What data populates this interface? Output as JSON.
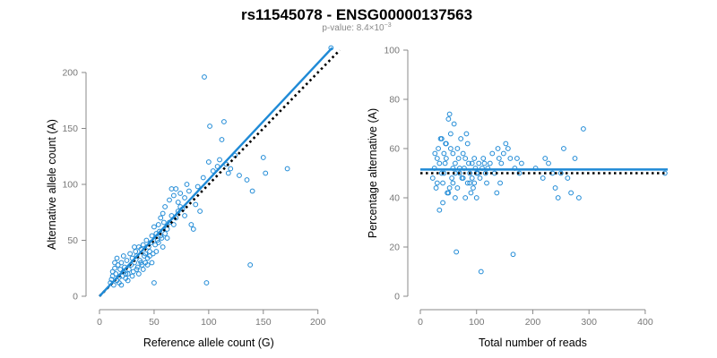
{
  "header": {
    "title": "rs11545078 - ENSG00000137563",
    "subtitle_prefix": "p-value: 8.4×10",
    "subtitle_exponent": "−3"
  },
  "colors": {
    "point": "#1f8ad6",
    "fit_line": "#1f8ad6",
    "reference_line": "#000000",
    "tick_text": "#777777"
  },
  "chart_data": [
    {
      "type": "scatter",
      "title": "",
      "xlabel": "Reference allele count (G)",
      "ylabel": "Alternative allele count (A)",
      "xlim": [
        0,
        215
      ],
      "ylim": [
        0,
        220
      ],
      "xticks": [
        0,
        50,
        100,
        150,
        200
      ],
      "yticks": [
        0,
        50,
        100,
        150,
        200
      ],
      "grid": false,
      "fit_line": {
        "x": [
          0,
          213
        ],
        "y": [
          0,
          222
        ]
      },
      "reference_line": {
        "x": [
          0,
          220
        ],
        "y": [
          0,
          220
        ],
        "style": "dotted"
      },
      "points": [
        [
          10,
          12
        ],
        [
          11,
          15
        ],
        [
          12,
          18
        ],
        [
          13,
          10
        ],
        [
          12,
          22
        ],
        [
          14,
          25
        ],
        [
          15,
          20
        ],
        [
          16,
          14
        ],
        [
          17,
          28
        ],
        [
          18,
          17
        ],
        [
          19,
          24
        ],
        [
          20,
          30
        ],
        [
          21,
          18
        ],
        [
          22,
          22
        ],
        [
          23,
          26
        ],
        [
          24,
          16
        ],
        [
          25,
          32
        ],
        [
          26,
          20
        ],
        [
          27,
          24
        ],
        [
          28,
          38
        ],
        [
          29,
          28
        ],
        [
          30,
          34
        ],
        [
          31,
          22
        ],
        [
          32,
          30
        ],
        [
          33,
          40
        ],
        [
          34,
          36
        ],
        [
          35,
          26
        ],
        [
          36,
          44
        ],
        [
          37,
          32
        ],
        [
          38,
          42
        ],
        [
          39,
          28
        ],
        [
          40,
          46
        ],
        [
          41,
          36
        ],
        [
          42,
          38
        ],
        [
          43,
          50
        ],
        [
          44,
          34
        ],
        [
          45,
          44
        ],
        [
          46,
          40
        ],
        [
          47,
          48
        ],
        [
          48,
          54
        ],
        [
          49,
          38
        ],
        [
          50,
          62
        ],
        [
          51,
          46
        ],
        [
          52,
          56
        ],
        [
          53,
          50
        ],
        [
          54,
          64
        ],
        [
          55,
          58
        ],
        [
          56,
          70
        ],
        [
          57,
          52
        ],
        [
          58,
          74
        ],
        [
          59,
          66
        ],
        [
          60,
          80
        ],
        [
          62,
          60
        ],
        [
          64,
          86
        ],
        [
          66,
          72
        ],
        [
          68,
          90
        ],
        [
          70,
          96
        ],
        [
          72,
          84
        ],
        [
          74,
          92
        ],
        [
          76,
          78
        ],
        [
          78,
          88
        ],
        [
          80,
          100
        ],
        [
          82,
          94
        ],
        [
          84,
          64
        ],
        [
          86,
          60
        ],
        [
          88,
          82
        ],
        [
          90,
          98
        ],
        [
          92,
          76
        ],
        [
          95,
          106
        ],
        [
          96,
          196
        ],
        [
          98,
          12
        ],
        [
          100,
          120
        ],
        [
          101,
          152
        ],
        [
          104,
          112
        ],
        [
          108,
          116
        ],
        [
          110,
          122
        ],
        [
          112,
          140
        ],
        [
          114,
          156
        ],
        [
          116,
          118
        ],
        [
          118,
          110
        ],
        [
          120,
          114
        ],
        [
          124,
          126
        ],
        [
          128,
          108
        ],
        [
          135,
          104
        ],
        [
          138,
          28
        ],
        [
          140,
          94
        ],
        [
          150,
          124
        ],
        [
          152,
          110
        ],
        [
          172,
          114
        ],
        [
          212,
          222
        ],
        [
          14,
          30
        ],
        [
          16,
          34
        ],
        [
          18,
          12
        ],
        [
          20,
          10
        ],
        [
          22,
          36
        ],
        [
          24,
          20
        ],
        [
          26,
          14
        ],
        [
          30,
          18
        ],
        [
          32,
          44
        ],
        [
          34,
          24
        ],
        [
          36,
          20
        ],
        [
          38,
          30
        ],
        [
          40,
          24
        ],
        [
          42,
          30
        ],
        [
          44,
          28
        ],
        [
          46,
          36
        ],
        [
          48,
          30
        ],
        [
          50,
          12
        ],
        [
          52,
          40
        ],
        [
          54,
          48
        ],
        [
          56,
          54
        ],
        [
          58,
          44
        ],
        [
          60,
          56
        ],
        [
          62,
          52
        ],
        [
          64,
          66
        ],
        [
          66,
          96
        ],
        [
          68,
          64
        ],
        [
          70,
          70
        ],
        [
          72,
          76
        ],
        [
          74,
          80
        ],
        [
          78,
          72
        ]
      ]
    },
    {
      "type": "scatter",
      "title": "",
      "xlabel": "Total number of reads",
      "ylabel": "Percentage alternative (A)",
      "xlim": [
        0,
        440
      ],
      "ylim": [
        0,
        100
      ],
      "xticks": [
        0,
        100,
        200,
        300,
        400
      ],
      "yticks": [
        0,
        20,
        40,
        60,
        80,
        100
      ],
      "grid": false,
      "fit_line": {
        "x": [
          0,
          440
        ],
        "y": [
          51.5,
          51.5
        ]
      },
      "reference_line": {
        "x": [
          0,
          440
        ],
        "y": [
          50,
          50
        ],
        "style": "dotted"
      },
      "points": [
        [
          22,
          48
        ],
        [
          25,
          52
        ],
        [
          28,
          44
        ],
        [
          30,
          56
        ],
        [
          32,
          60
        ],
        [
          34,
          35
        ],
        [
          36,
          64
        ],
        [
          38,
          50
        ],
        [
          40,
          46
        ],
        [
          42,
          58
        ],
        [
          44,
          54
        ],
        [
          46,
          62
        ],
        [
          48,
          42
        ],
        [
          50,
          72
        ],
        [
          52,
          74
        ],
        [
          54,
          66
        ],
        [
          56,
          48
        ],
        [
          58,
          52
        ],
        [
          60,
          70
        ],
        [
          62,
          40
        ],
        [
          64,
          18
        ],
        [
          66,
          44
        ],
        [
          68,
          56
        ],
        [
          70,
          50
        ],
        [
          72,
          64
        ],
        [
          74,
          48
        ],
        [
          76,
          58
        ],
        [
          78,
          52
        ],
        [
          80,
          56
        ],
        [
          82,
          66
        ],
        [
          84,
          46
        ],
        [
          86,
          54
        ],
        [
          88,
          50
        ],
        [
          90,
          42
        ],
        [
          92,
          48
        ],
        [
          94,
          44
        ],
        [
          96,
          46
        ],
        [
          98,
          52
        ],
        [
          100,
          40
        ],
        [
          102,
          50
        ],
        [
          104,
          54
        ],
        [
          106,
          48
        ],
        [
          108,
          10
        ],
        [
          110,
          52
        ],
        [
          112,
          56
        ],
        [
          114,
          54
        ],
        [
          116,
          50
        ],
        [
          118,
          46
        ],
        [
          120,
          52
        ],
        [
          124,
          54
        ],
        [
          128,
          58
        ],
        [
          132,
          50
        ],
        [
          136,
          42
        ],
        [
          138,
          60
        ],
        [
          140,
          56
        ],
        [
          142,
          46
        ],
        [
          144,
          54
        ],
        [
          148,
          58
        ],
        [
          152,
          62
        ],
        [
          156,
          60
        ],
        [
          160,
          56
        ],
        [
          165,
          17
        ],
        [
          168,
          52
        ],
        [
          172,
          56
        ],
        [
          176,
          50
        ],
        [
          180,
          54
        ],
        [
          205,
          52
        ],
        [
          218,
          48
        ],
        [
          222,
          56
        ],
        [
          228,
          54
        ],
        [
          235,
          50
        ],
        [
          240,
          44
        ],
        [
          245,
          40
        ],
        [
          250,
          50
        ],
        [
          255,
          60
        ],
        [
          262,
          48
        ],
        [
          268,
          42
        ],
        [
          275,
          56
        ],
        [
          282,
          40
        ],
        [
          290,
          68
        ],
        [
          435,
          50
        ],
        [
          40,
          38
        ],
        [
          45,
          62
        ],
        [
          52,
          44
        ],
        [
          58,
          58
        ],
        [
          62,
          50
        ],
        [
          66,
          60
        ],
        [
          70,
          52
        ],
        [
          76,
          48
        ],
        [
          80,
          40
        ],
        [
          84,
          62
        ],
        [
          88,
          46
        ],
        [
          92,
          54
        ],
        [
          96,
          56
        ],
        [
          100,
          50
        ],
        [
          26,
          58
        ],
        [
          30,
          46
        ],
        [
          34,
          54
        ],
        [
          38,
          64
        ],
        [
          42,
          50
        ],
        [
          46,
          56
        ],
        [
          50,
          42
        ],
        [
          54,
          60
        ],
        [
          58,
          46
        ],
        [
          62,
          54
        ]
      ]
    }
  ]
}
